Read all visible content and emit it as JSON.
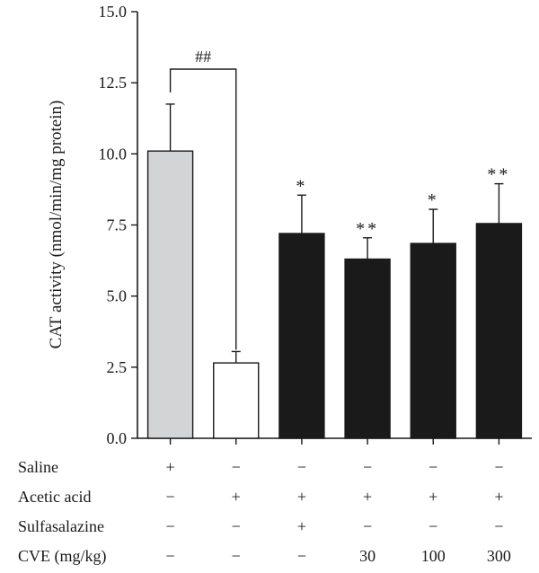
{
  "chart_data": {
    "type": "bar",
    "ylabel": "CAT activity (nmol/min/mg protein)",
    "ylim": [
      0,
      15
    ],
    "yticks": [
      "0.0",
      "2.5",
      "5.0",
      "7.5",
      "10.0",
      "12.5",
      "15.0"
    ],
    "grid": false,
    "bars": [
      {
        "value": 10.1,
        "error": 1.65,
        "color": "#d3d4d6",
        "mark": ""
      },
      {
        "value": 2.65,
        "error": 0.4,
        "color": "#ffffff",
        "mark": ""
      },
      {
        "value": 7.2,
        "error": 1.35,
        "color": "#1a1a1a",
        "mark": "*"
      },
      {
        "value": 6.3,
        "error": 0.75,
        "color": "#1a1a1a",
        "mark": "**"
      },
      {
        "value": 6.85,
        "error": 1.2,
        "color": "#1a1a1a",
        "mark": "*"
      },
      {
        "value": 7.55,
        "error": 1.4,
        "color": "#1a1a1a",
        "mark": "**"
      }
    ],
    "comparison": {
      "from": 0,
      "to": 1,
      "label": "##"
    },
    "conditions": [
      {
        "label": "Saline",
        "values": [
          "+",
          "−",
          "−",
          "−",
          "−",
          "−"
        ]
      },
      {
        "label": "Acetic acid",
        "values": [
          "−",
          "+",
          "+",
          "+",
          "+",
          "+"
        ]
      },
      {
        "label": "Sulfasalazine",
        "values": [
          "−",
          "−",
          "+",
          "−",
          "−",
          "−"
        ]
      },
      {
        "label": "CVE (mg/kg)",
        "values": [
          "−",
          "−",
          "−",
          "30",
          "100",
          "300"
        ]
      }
    ]
  }
}
